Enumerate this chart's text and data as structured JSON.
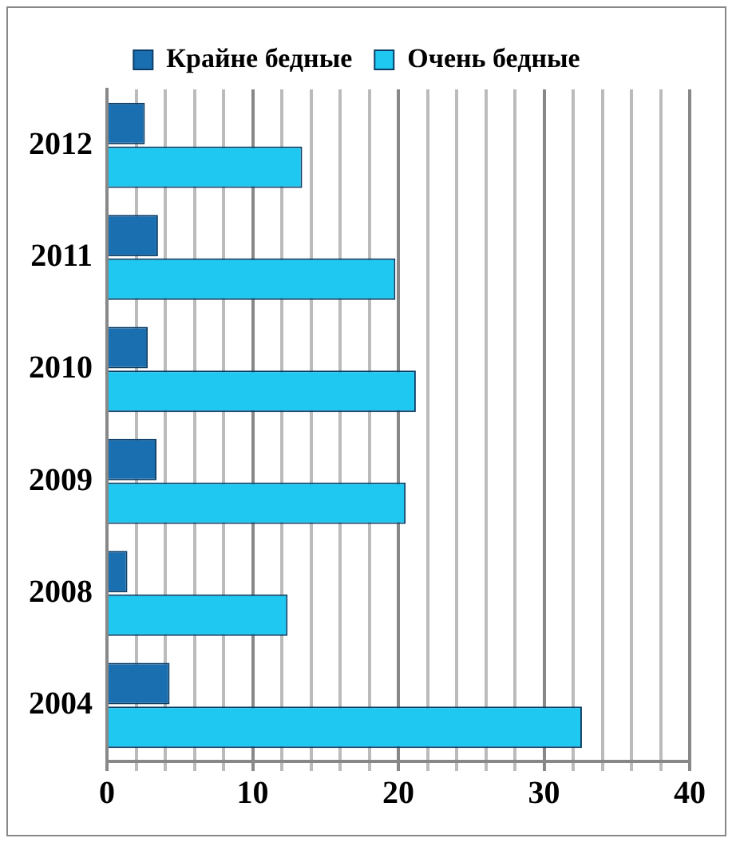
{
  "chart_data": {
    "type": "bar",
    "orientation": "horizontal",
    "categories": [
      "2012",
      "2011",
      "2010",
      "2009",
      "2008",
      "2004"
    ],
    "series": [
      {
        "name": "Крайне бедные",
        "color": "#1a6fb0",
        "values": [
          2.6,
          3.5,
          2.8,
          3.4,
          1.4,
          4.3
        ]
      },
      {
        "name": "Очень бедные",
        "color": "#1ec8f0",
        "values": [
          13.4,
          19.8,
          21.2,
          20.5,
          12.4,
          32.6
        ]
      }
    ],
    "xlim": [
      0,
      40
    ],
    "xticks": [
      0,
      {
        "value": 2,
        "label": null
      },
      {
        "value": 4,
        "label": null
      },
      {
        "value": 6,
        "label": null
      },
      {
        "value": 8,
        "label": null
      },
      10,
      {
        "value": 12,
        "label": null
      },
      {
        "value": 14,
        "label": null
      },
      {
        "value": 16,
        "label": null
      },
      {
        "value": 18,
        "label": null
      },
      20,
      {
        "value": 22,
        "label": null
      },
      {
        "value": 24,
        "label": null
      },
      {
        "value": 26,
        "label": null
      },
      {
        "value": 28,
        "label": null
      },
      30,
      {
        "value": 32,
        "label": null
      },
      {
        "value": 34,
        "label": null
      },
      {
        "value": 36,
        "label": null
      },
      {
        "value": 38,
        "label": null
      },
      40
    ],
    "grid": "x",
    "legend": "top"
  }
}
